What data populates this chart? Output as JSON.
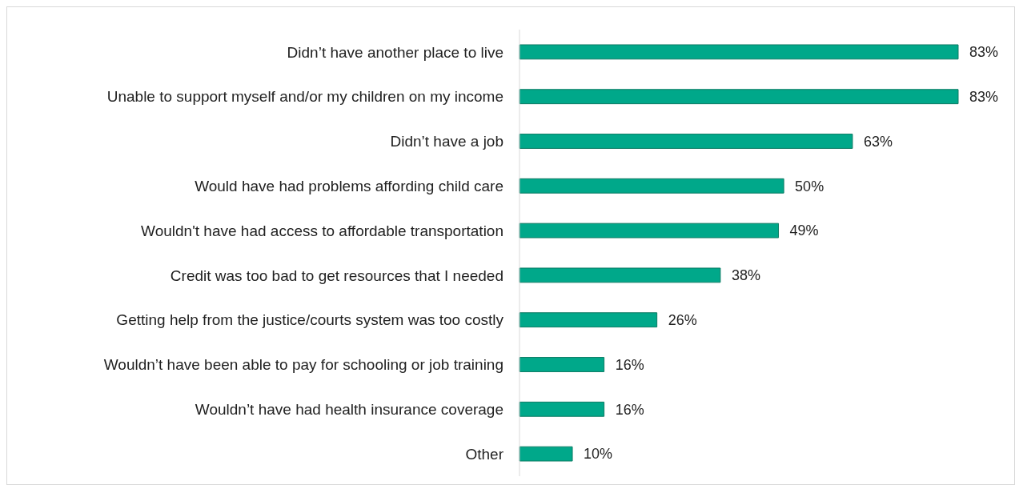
{
  "chart_data": {
    "type": "bar",
    "orientation": "horizontal",
    "color": "#00a88a",
    "categories": [
      "Didn’t have another place to live",
      "Unable to support myself and/or my children on my income",
      "Didn’t have a job",
      "Would have had problems affording child care",
      "Wouldn't have had access to affordable transportation",
      "Credit was too bad to get resources that I needed",
      "Getting help from the justice/courts system was too costly",
      "Wouldn’t have been able to pay for schooling or job training",
      "Wouldn’t have had health insurance coverage",
      "Other"
    ],
    "values": [
      83,
      83,
      63,
      50,
      49,
      38,
      26,
      16,
      16,
      10
    ],
    "value_labels": [
      "83%",
      "83%",
      "63%",
      "50%",
      "49%",
      "38%",
      "26%",
      "16%",
      "16%",
      "10%"
    ]
  }
}
